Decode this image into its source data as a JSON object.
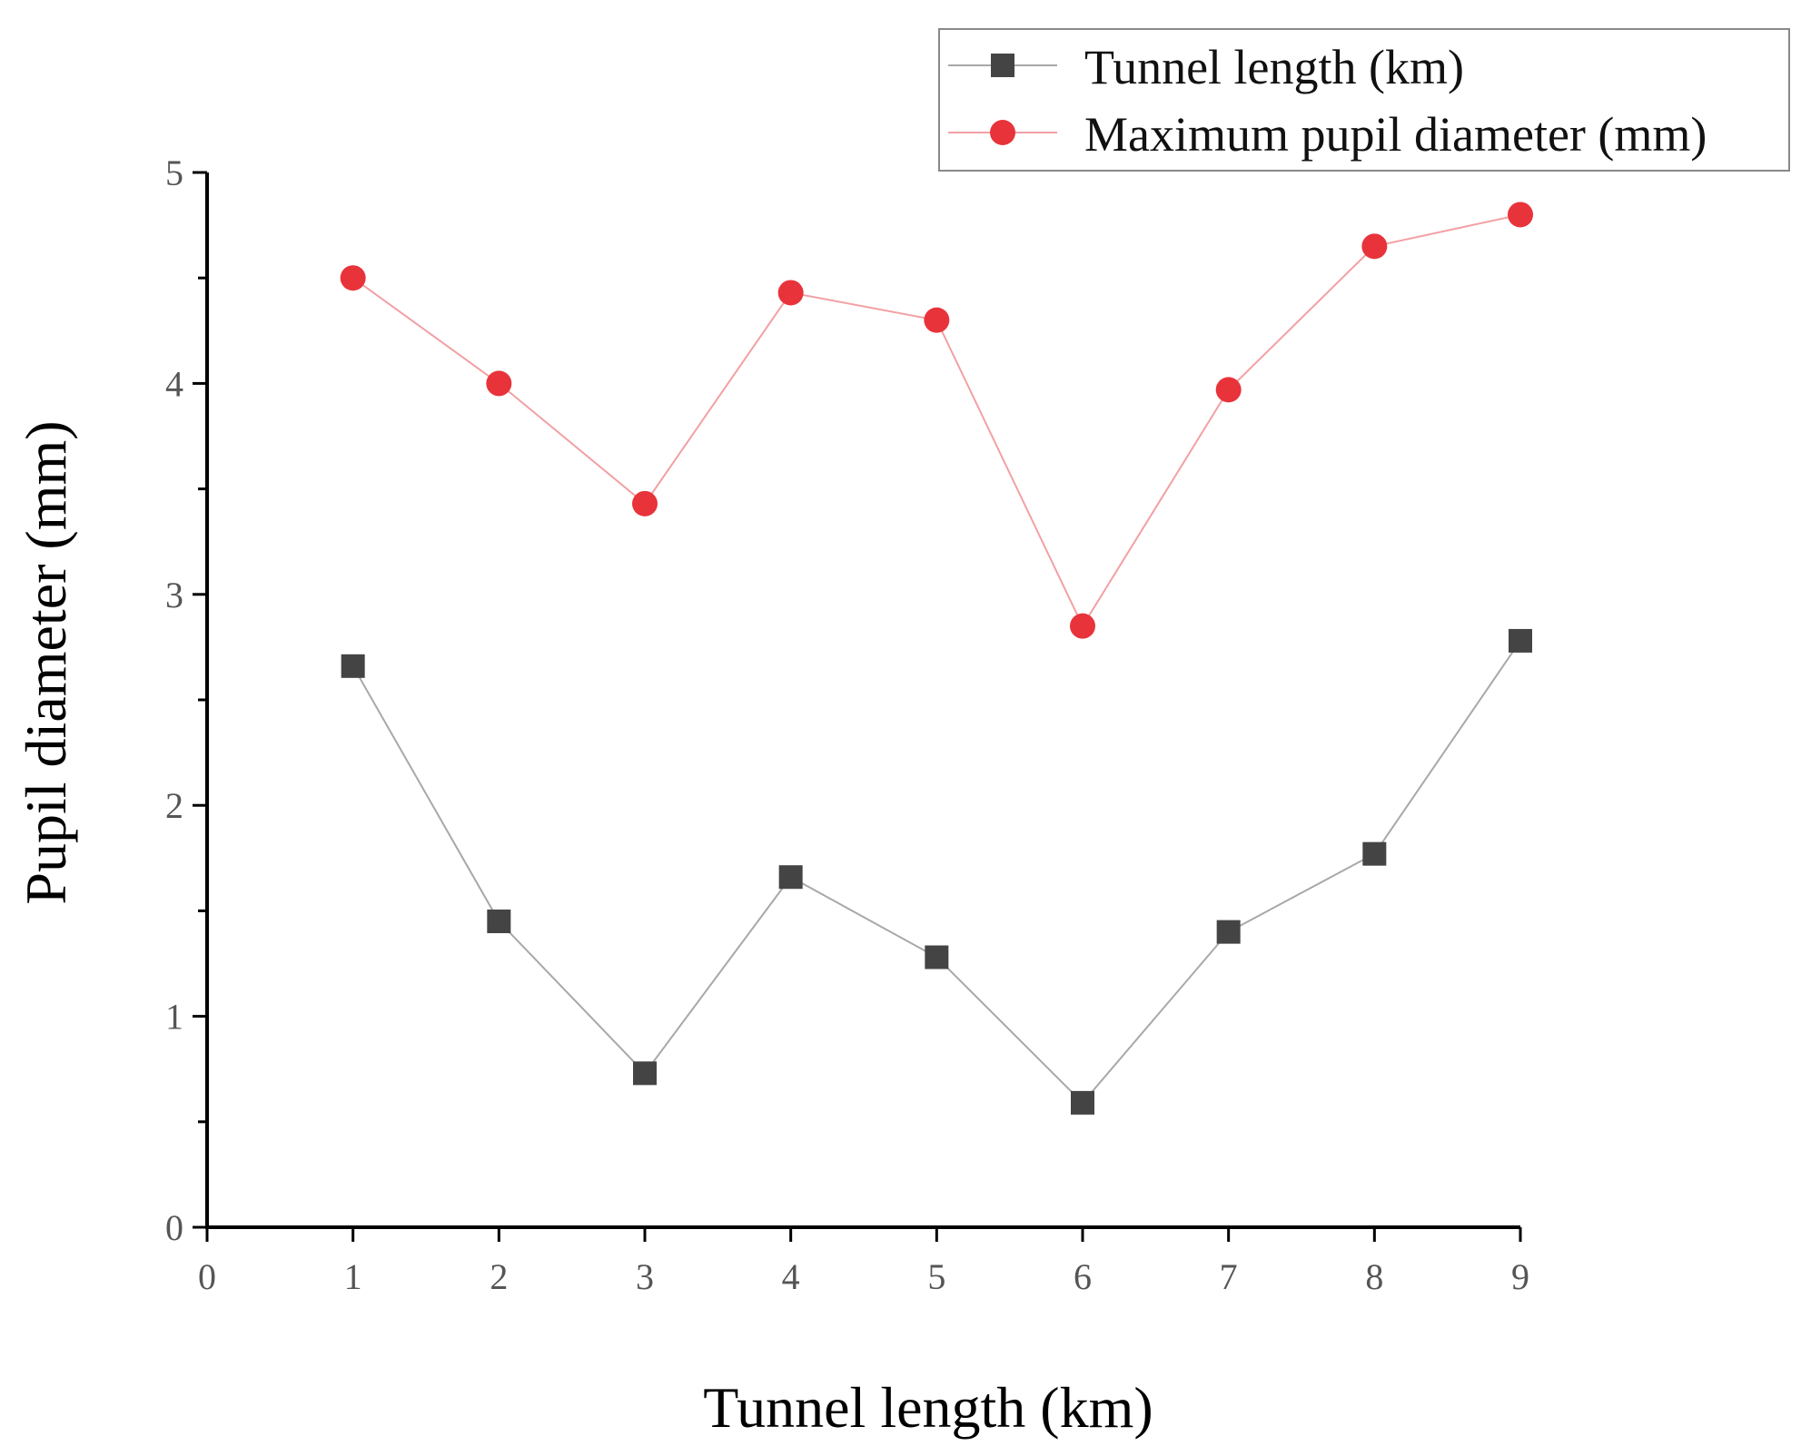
{
  "chart_data": {
    "type": "line",
    "title": "",
    "xlabel": "Tunnel length (km)",
    "ylabel": "Pupil diameter (mm)",
    "xlim": [
      0,
      9
    ],
    "ylim": [
      0,
      5
    ],
    "xticks": [
      "0",
      "1",
      "2",
      "3",
      "4",
      "5",
      "6",
      "7",
      "8",
      "9"
    ],
    "yticks": [
      "0",
      "1",
      "2",
      "3",
      "4",
      "5"
    ],
    "grid": false,
    "legend_position": "top-right",
    "x": [
      1,
      2,
      3,
      4,
      5,
      6,
      7,
      8,
      9
    ],
    "series": [
      {
        "name": "Tunnel length (km)",
        "marker": "square",
        "color": "#444444",
        "line_color": "#a8a8a8",
        "values": [
          2.66,
          1.45,
          0.73,
          1.66,
          1.28,
          0.59,
          1.4,
          1.77,
          2.78
        ]
      },
      {
        "name": "Maximum pupil diameter (mm)",
        "marker": "circle",
        "color": "#e8333b",
        "line_color": "#f2a0a4",
        "values": [
          4.5,
          4.0,
          3.43,
          4.43,
          4.3,
          2.85,
          3.97,
          4.65,
          4.8
        ]
      }
    ]
  }
}
